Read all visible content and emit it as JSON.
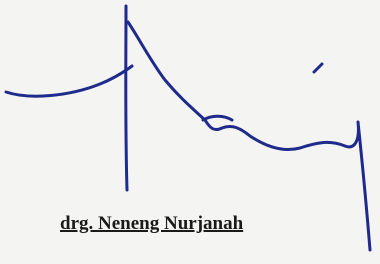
{
  "signature_name": "drg. Neneng Nurjanah"
}
